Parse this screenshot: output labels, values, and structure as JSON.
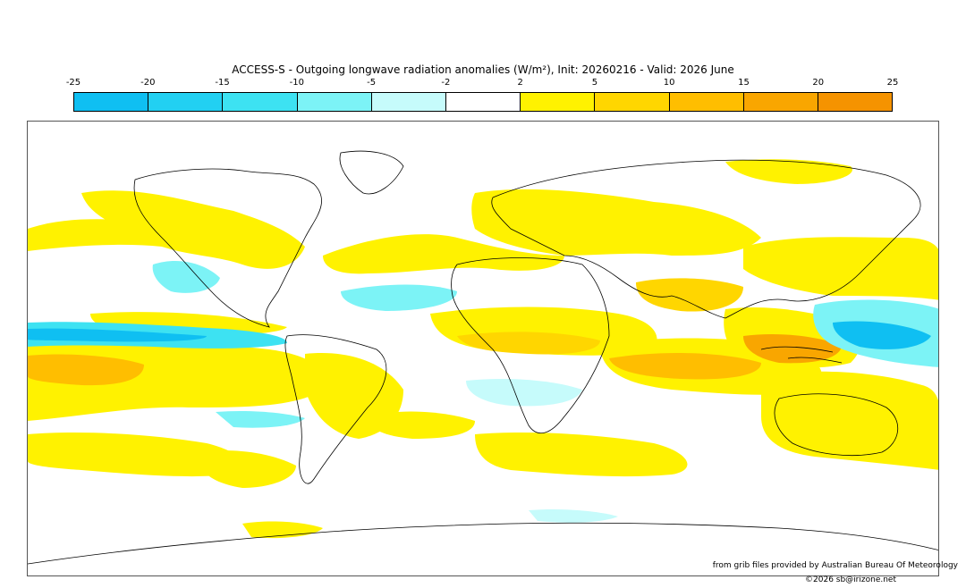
{
  "title": "ACCESS-S - Outgoing longwave radiation anomalies (W/m²), Init: 20260216 - Valid: 2026 June",
  "colorbar": {
    "ticks": [
      "-25",
      "-20",
      "-15",
      "-10",
      "-5",
      "-2",
      "2",
      "5",
      "10",
      "15",
      "20",
      "25"
    ],
    "colors": [
      "#0fbff2",
      "#22d0f2",
      "#3de2f2",
      "#7cf3f6",
      "#c6fbfb",
      "#ffffff",
      "#fff200",
      "#ffd600",
      "#ffbe00",
      "#f9a600",
      "#f59300"
    ]
  },
  "credit": "from grib files provided by Australian Bureau Of Meteorology",
  "copyright": "©2026 sb@irizone.net"
}
